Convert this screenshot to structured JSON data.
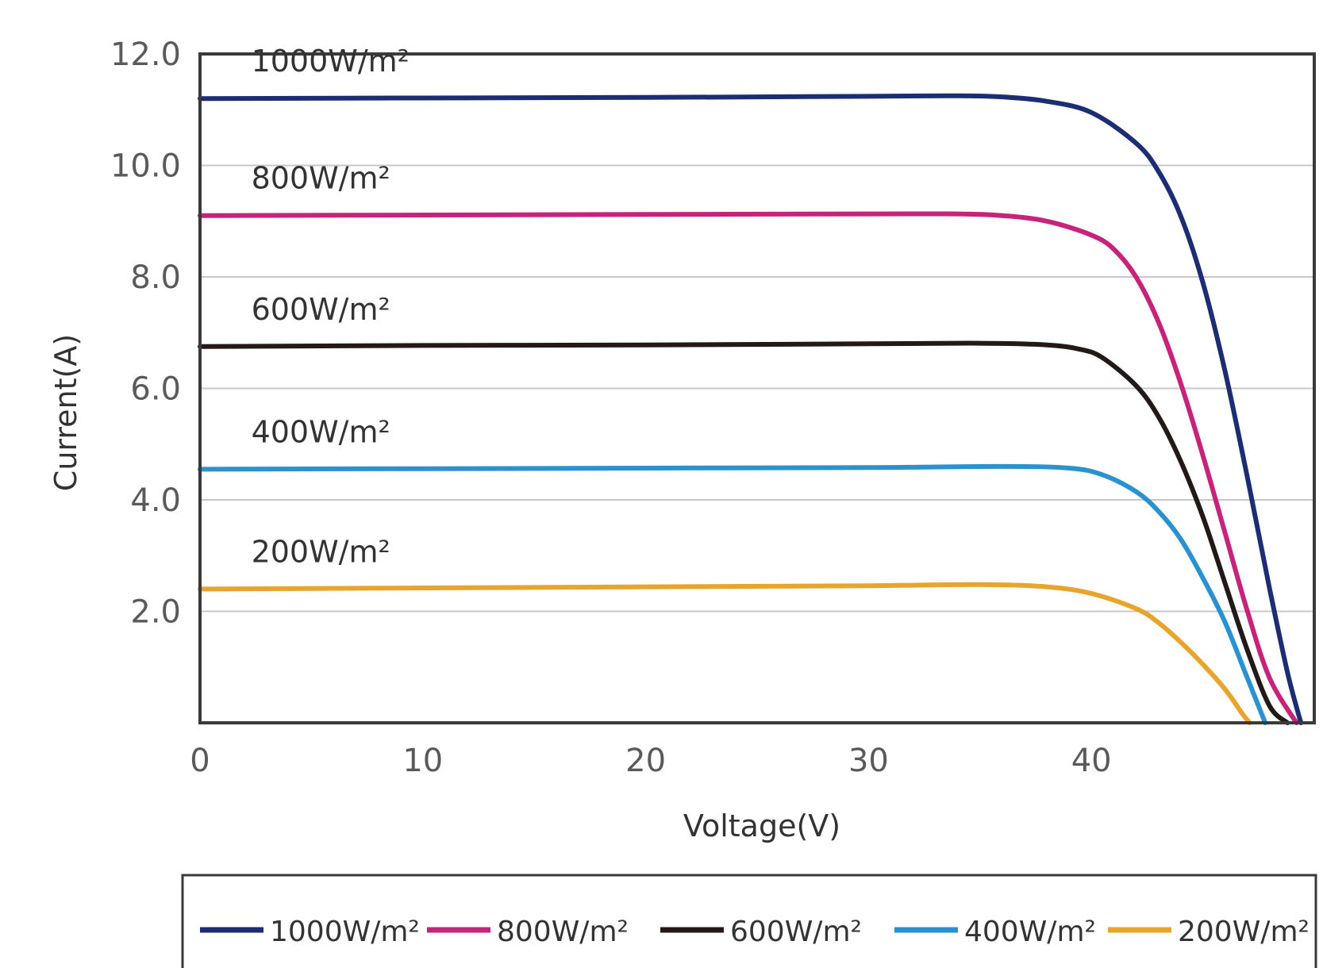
{
  "chart_data": {
    "type": "line",
    "xlabel": "Voltage(V)",
    "ylabel": "Current(A)",
    "xlim": [
      0,
      50
    ],
    "ylim": [
      0,
      12
    ],
    "x_ticks": [
      "0",
      "10",
      "20",
      "30",
      "40"
    ],
    "x_tick_values": [
      0,
      10,
      20,
      30,
      40
    ],
    "y_ticks": [
      "12.0",
      "10.0",
      "8.0",
      "6.0",
      "4.0",
      "2.0"
    ],
    "y_tick_values": [
      12,
      10,
      8,
      6,
      4,
      2
    ],
    "grid": "horizontal",
    "legend_position": "bottom",
    "series": [
      {
        "name": "1000W/m²",
        "color": "#1c2d74",
        "points": [
          [
            0,
            11.2
          ],
          [
            10,
            11.21
          ],
          [
            20,
            11.22
          ],
          [
            30,
            11.24
          ],
          [
            34,
            11.25
          ],
          [
            36,
            11.23
          ],
          [
            38,
            11.15
          ],
          [
            40,
            10.95
          ],
          [
            42,
            10.4
          ],
          [
            43,
            9.9
          ],
          [
            44,
            9.1
          ],
          [
            45,
            7.9
          ],
          [
            46,
            6.3
          ],
          [
            47,
            4.4
          ],
          [
            48,
            2.4
          ],
          [
            48.8,
            0.9
          ],
          [
            49.4,
            0
          ]
        ]
      },
      {
        "name": "800W/m²",
        "color": "#c8237b",
        "points": [
          [
            0,
            9.1
          ],
          [
            10,
            9.11
          ],
          [
            20,
            9.12
          ],
          [
            30,
            9.13
          ],
          [
            34,
            9.13
          ],
          [
            36,
            9.1
          ],
          [
            38,
            9.0
          ],
          [
            40,
            8.75
          ],
          [
            41,
            8.5
          ],
          [
            42,
            8.0
          ],
          [
            43,
            7.2
          ],
          [
            44,
            6.1
          ],
          [
            45,
            4.8
          ],
          [
            46,
            3.4
          ],
          [
            47,
            2.0
          ],
          [
            48,
            0.8
          ],
          [
            49.2,
            0
          ]
        ]
      },
      {
        "name": "600W/m²",
        "color": "#231a18",
        "points": [
          [
            0,
            6.75
          ],
          [
            10,
            6.77
          ],
          [
            20,
            6.78
          ],
          [
            30,
            6.8
          ],
          [
            35,
            6.81
          ],
          [
            38,
            6.78
          ],
          [
            39.5,
            6.7
          ],
          [
            40.5,
            6.55
          ],
          [
            42,
            6.05
          ],
          [
            43,
            5.5
          ],
          [
            44,
            4.7
          ],
          [
            45,
            3.7
          ],
          [
            46,
            2.5
          ],
          [
            47,
            1.3
          ],
          [
            48,
            0.3
          ],
          [
            48.8,
            0
          ]
        ]
      },
      {
        "name": "400W/m²",
        "color": "#2a92d0",
        "points": [
          [
            0,
            4.55
          ],
          [
            10,
            4.56
          ],
          [
            20,
            4.57
          ],
          [
            30,
            4.58
          ],
          [
            36,
            4.6
          ],
          [
            39,
            4.57
          ],
          [
            40.5,
            4.45
          ],
          [
            42,
            4.15
          ],
          [
            43,
            3.8
          ],
          [
            44,
            3.3
          ],
          [
            45,
            2.6
          ],
          [
            46,
            1.8
          ],
          [
            47,
            0.8
          ],
          [
            47.8,
            0
          ]
        ]
      },
      {
        "name": "200W/m²",
        "color": "#e7a52d",
        "points": [
          [
            0,
            2.4
          ],
          [
            10,
            2.42
          ],
          [
            20,
            2.44
          ],
          [
            30,
            2.46
          ],
          [
            35,
            2.48
          ],
          [
            38,
            2.44
          ],
          [
            40,
            2.32
          ],
          [
            42,
            2.05
          ],
          [
            43,
            1.8
          ],
          [
            44,
            1.45
          ],
          [
            45,
            1.05
          ],
          [
            46,
            0.6
          ],
          [
            46.8,
            0.15
          ],
          [
            47.1,
            0
          ]
        ]
      }
    ],
    "curve_labels": [
      "1000W/m²",
      "800W/m²",
      "600W/m²",
      "400W/m²",
      "200W/m²"
    ]
  }
}
